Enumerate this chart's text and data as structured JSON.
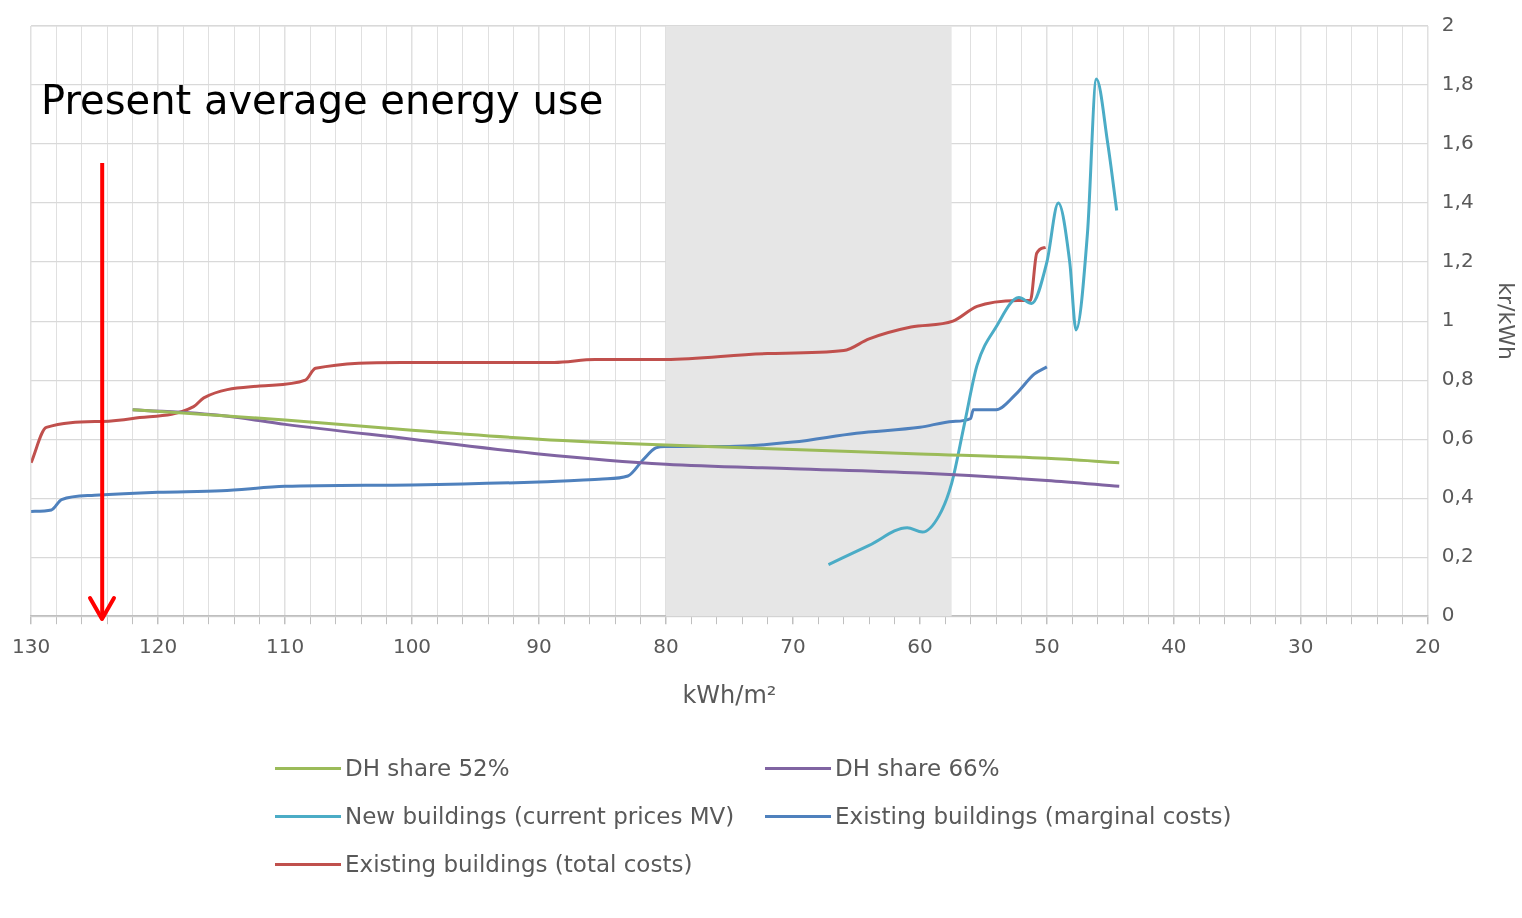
{
  "chart_data": {
    "type": "line",
    "xlabel": "kWh/m²",
    "y2label": "kr/kWh",
    "xlim": [
      130,
      20
    ],
    "xticks": [
      130,
      {
        "value": 128,
        "label": null
      },
      {
        "value": 126,
        "label": null
      },
      {
        "value": 124,
        "label": null
      },
      {
        "value": 122,
        "label": null
      },
      120,
      {
        "value": 118,
        "label": null
      },
      {
        "value": 116,
        "label": null
      },
      {
        "value": 114,
        "label": null
      },
      {
        "value": 112,
        "label": null
      },
      110,
      {
        "value": 108,
        "label": null
      },
      {
        "value": 106,
        "label": null
      },
      {
        "value": 104,
        "label": null
      },
      {
        "value": 102,
        "label": null
      },
      100,
      {
        "value": 98,
        "label": null
      },
      {
        "value": 96,
        "label": null
      },
      {
        "value": 94,
        "label": null
      },
      {
        "value": 92,
        "label": null
      },
      90,
      {
        "value": 88,
        "label": null
      },
      {
        "value": 86,
        "label": null
      },
      {
        "value": 84,
        "label": null
      },
      {
        "value": 82,
        "label": null
      },
      80,
      {
        "value": 78,
        "label": null
      },
      {
        "value": 76,
        "label": null
      },
      {
        "value": 74,
        "label": null
      },
      {
        "value": 72,
        "label": null
      },
      70,
      {
        "value": 68,
        "label": null
      },
      {
        "value": 66,
        "label": null
      },
      {
        "value": 64,
        "label": null
      },
      {
        "value": 62,
        "label": null
      },
      60,
      {
        "value": 58,
        "label": null
      },
      {
        "value": 56,
        "label": null
      },
      {
        "value": 54,
        "label": null
      },
      {
        "value": 52,
        "label": null
      },
      50,
      {
        "value": 48,
        "label": null
      },
      {
        "value": 46,
        "label": null
      },
      {
        "value": 44,
        "label": null
      },
      {
        "value": 42,
        "label": null
      },
      40,
      {
        "value": 38,
        "label": null
      },
      {
        "value": 36,
        "label": null
      },
      {
        "value": 34,
        "label": null
      },
      {
        "value": 32,
        "label": null
      },
      30,
      {
        "value": 28,
        "label": null
      },
      {
        "value": 26,
        "label": null
      },
      {
        "value": 24,
        "label": null
      },
      {
        "value": 22,
        "label": null
      },
      20
    ],
    "y2lim": [
      0,
      2
    ],
    "y2ticks": [
      0,
      {
        "value": 0.2,
        "label": "0,2"
      },
      {
        "value": 0.4,
        "label": "0,4"
      },
      {
        "value": 0.6,
        "label": "0,6"
      },
      {
        "value": 0.8,
        "label": "0,8"
      },
      1,
      {
        "value": 1.2,
        "label": "1,2"
      },
      {
        "value": 1.4,
        "label": "1,4"
      },
      {
        "value": 1.6,
        "label": "1,6"
      },
      {
        "value": 1.8,
        "label": "1,8"
      },
      2
    ],
    "grid": true,
    "legend": "bottom",
    "marker": "none",
    "line_style": "solid",
    "bands": [
      {
        "axis": "x",
        "from": 80,
        "to": 57.5,
        "color": "#e6e6e6"
      }
    ],
    "ref_lines": [
      {
        "axis": "x",
        "value": 124.4,
        "label": "Present average energy use",
        "color": "#ff0000"
      }
    ],
    "series": [
      {
        "name": "DH share 52%",
        "color": "#9bbb59",
        "axis": "y2",
        "x": [
          122,
          110,
          100,
          90,
          80,
          70,
          60,
          50,
          44.3
        ],
        "values": [
          0.7,
          0.665,
          0.63,
          0.6,
          0.58,
          0.565,
          0.55,
          0.535,
          0.52
        ]
      },
      {
        "name": "DH share 66%",
        "color": "#8064a2",
        "axis": "y2",
        "x": [
          122,
          115,
          110,
          100,
          90,
          80,
          70,
          60,
          50,
          44.3
        ],
        "values": [
          0.7,
          0.68,
          0.65,
          0.6,
          0.55,
          0.515,
          0.5,
          0.485,
          0.46,
          0.44
        ]
      },
      {
        "name": "New buildings (current prices MV)",
        "color": "#4bacc6",
        "axis": "y2",
        "x": [
          67.2,
          64,
          61,
          59.8,
          58.5,
          57.5,
          56.5,
          55.5,
          54,
          52.2,
          51.2,
          50,
          49.1,
          48.2,
          47.7,
          46.8,
          46.1,
          45.2,
          44.5
        ],
        "values": [
          0.175,
          0.24,
          0.3,
          0.285,
          0.34,
          0.45,
          0.65,
          0.85,
          0.98,
          1.08,
          1.06,
          1.2,
          1.4,
          1.2,
          0.97,
          1.3,
          1.82,
          1.6,
          1.375
        ]
      },
      {
        "name": "Existing buildings (marginal costs)",
        "color": "#4f81bd",
        "axis": "y2",
        "x": [
          130,
          128.4,
          127.6,
          125,
          120,
          115,
          110,
          100,
          90,
          85,
          83,
          81.8,
          80.8,
          80,
          75,
          70,
          65,
          60,
          57.4,
          56,
          55.8,
          54,
          52.5,
          51,
          50
        ],
        "values": [
          0.355,
          0.36,
          0.395,
          0.41,
          0.42,
          0.425,
          0.44,
          0.445,
          0.455,
          0.465,
          0.475,
          0.53,
          0.57,
          0.575,
          0.575,
          0.59,
          0.62,
          0.64,
          0.66,
          0.67,
          0.7,
          0.7,
          0.75,
          0.82,
          0.845
        ]
      },
      {
        "name": "Existing buildings (total costs)",
        "color": "#c0504d",
        "axis": "y2",
        "x": [
          130,
          128.8,
          124.4,
          122,
          117.2,
          116.4,
          112,
          108.4,
          107.6,
          100.8,
          88.8,
          85.6,
          80,
          72,
          66,
          64,
          60.7,
          57.4,
          55.5,
          52,
          51.3,
          50.8,
          50.1
        ],
        "values": [
          0.52,
          0.64,
          0.66,
          0.67,
          0.71,
          0.74,
          0.78,
          0.8,
          0.84,
          0.86,
          0.86,
          0.87,
          0.87,
          0.89,
          0.9,
          0.94,
          0.98,
          1.0,
          1.05,
          1.07,
          1.07,
          1.23,
          1.25
        ]
      }
    ]
  }
}
